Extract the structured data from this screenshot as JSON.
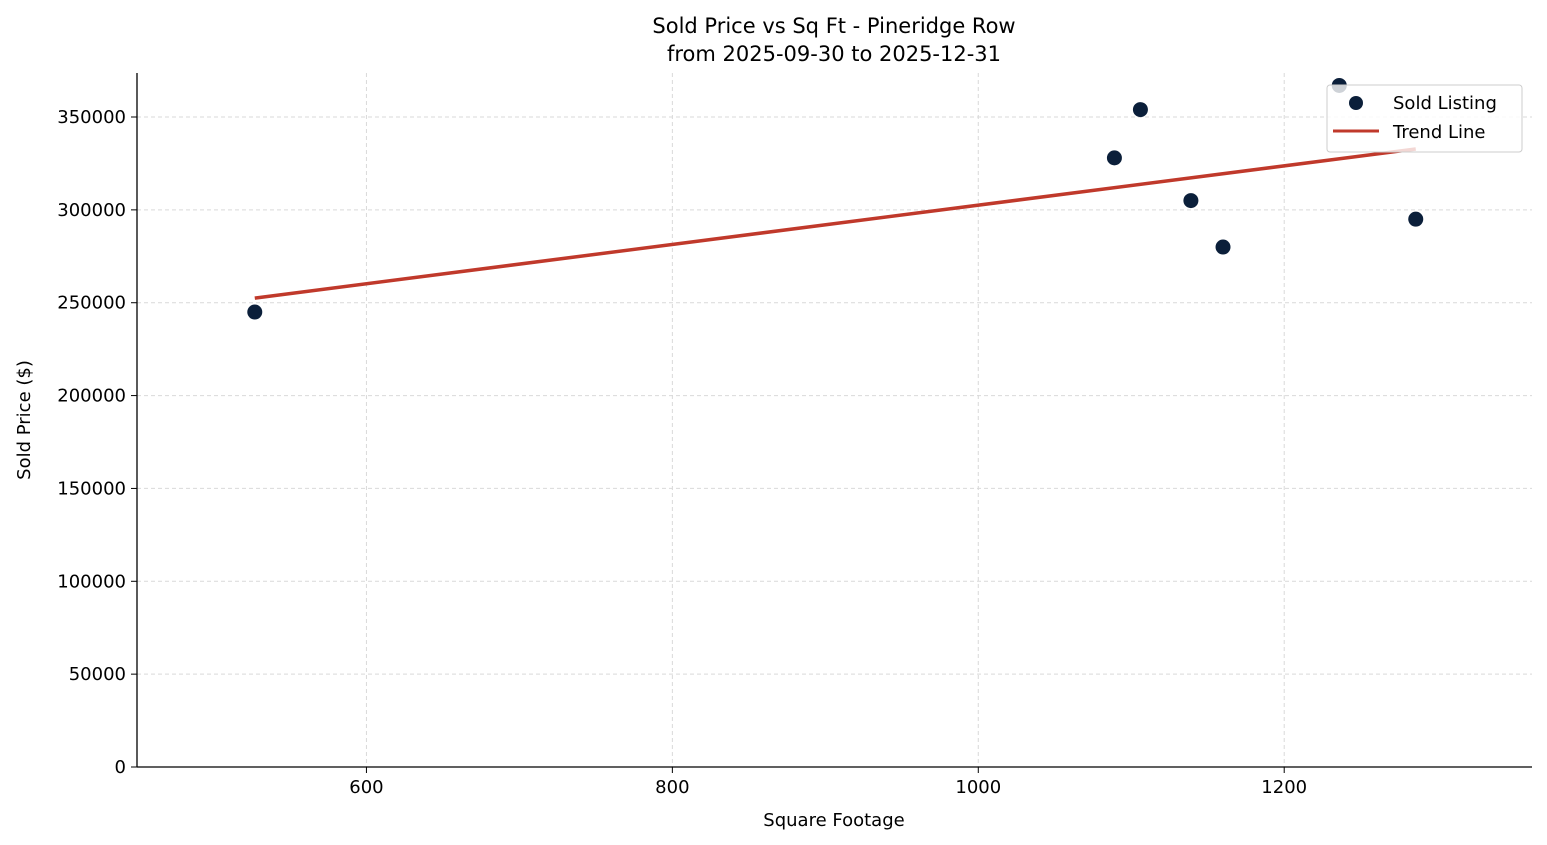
{
  "chart_data": {
    "type": "scatter",
    "title": "Sold Price vs Sq Ft - Pineridge Row",
    "subtitle": "from 2025-09-30 to 2025-12-31",
    "xlabel": "Square Footage",
    "ylabel": "Sold Price ($)",
    "xlim": [
      450,
      1362
    ],
    "ylim": [
      0,
      373700
    ],
    "xticks": [
      600,
      800,
      1000,
      1200
    ],
    "yticks": [
      0,
      50000,
      100000,
      150000,
      200000,
      250000,
      300000,
      350000
    ],
    "grid": true,
    "legend_position": "top-right",
    "series": [
      {
        "name": "Sold Listing",
        "kind": "scatter",
        "color": "#0b1f3a",
        "points": [
          [
            527,
            245000
          ],
          [
            1089,
            328000
          ],
          [
            1106,
            354000
          ],
          [
            1139,
            305000
          ],
          [
            1160,
            280000
          ],
          [
            1236,
            367000
          ],
          [
            1286,
            295000
          ]
        ]
      },
      {
        "name": "Trend Line",
        "kind": "line",
        "color": "#c0392b",
        "points": [
          [
            527,
            252500
          ],
          [
            1286,
            332800
          ]
        ]
      }
    ]
  }
}
